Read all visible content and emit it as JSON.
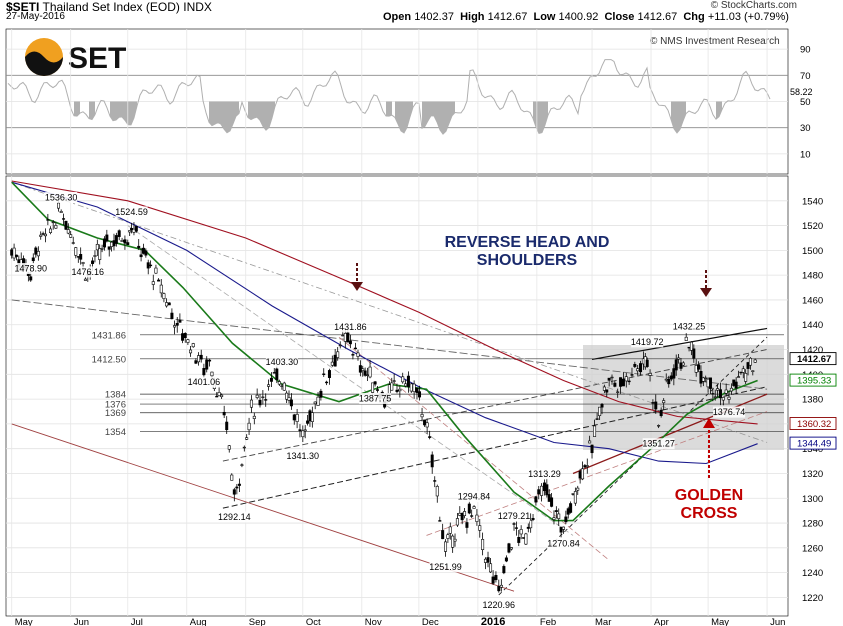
{
  "header": {
    "symbol": "$SETI",
    "name": "Thailand Set Index (EOD)",
    "exchange": "INDX",
    "date": "27-May-2016",
    "open_label": "Open",
    "open": "1402.37",
    "high_label": "High",
    "high": "1412.67",
    "low_label": "Low",
    "low": "1400.92",
    "close_label": "Close",
    "close": "1412.67",
    "chg_label": "Chg",
    "chg": "+11.03 (+0.79%)",
    "brand": "© StockCharts.com",
    "credit": "© NMS Investment Research",
    "logo_text": "SET",
    "colors": {
      "brand_orange": "#f0a020",
      "chg_green": "#008000"
    }
  },
  "chart_data": {
    "type": "line",
    "title": "",
    "x_labels": [
      "May",
      "Jun",
      "Jul",
      "Aug",
      "Sep",
      "Oct",
      "Nov",
      "Dec",
      "2016",
      "Feb",
      "Mar",
      "Apr",
      "May",
      "Jun"
    ],
    "y_ticks": [
      1220,
      1240,
      1260,
      1280,
      1300,
      1320,
      1340,
      1360,
      1380,
      1400,
      1420,
      1440,
      1460,
      1480,
      1500,
      1520,
      1540
    ],
    "ylim": [
      1205,
      1560
    ],
    "rsi_ticks": [
      10,
      30,
      50,
      70,
      90
    ],
    "rsi_latest": "58.22",
    "grid": true,
    "price_annotations": [
      {
        "label": "1478.90",
        "x": "2015-05-11",
        "value": 1478.9
      },
      {
        "label": "1536.30",
        "x": "2015-05-27",
        "value": 1536.3
      },
      {
        "label": "1476.16",
        "x": "2015-06-10",
        "value": 1476.16
      },
      {
        "label": "1524.59",
        "x": "2015-07-03",
        "value": 1524.59
      },
      {
        "label": "1401.06",
        "x": "2015-08-10",
        "value": 1401.06
      },
      {
        "label": "1292.14",
        "x": "2015-08-26",
        "value": 1292.14
      },
      {
        "label": "1403.30",
        "x": "2015-09-20",
        "value": 1403.3
      },
      {
        "label": "1341.30",
        "x": "2015-10-01",
        "value": 1341.3
      },
      {
        "label": "1431.86",
        "x": "2015-10-26",
        "value": 1431.86
      },
      {
        "label": "1387.75",
        "x": "2015-11-08",
        "value": 1387.75
      },
      {
        "label": "1251.99",
        "x": "2015-12-15",
        "value": 1251.99
      },
      {
        "label": "1294.84",
        "x": "2015-12-30",
        "value": 1294.84
      },
      {
        "label": "1220.96",
        "x": "2016-01-12",
        "value": 1220.96
      },
      {
        "label": "1279.21",
        "x": "2016-01-20",
        "value": 1279.21
      },
      {
        "label": "1313.29",
        "x": "2016-02-05",
        "value": 1313.29
      },
      {
        "label": "1270.84",
        "x": "2016-02-15",
        "value": 1270.84
      },
      {
        "label": "1419.72",
        "x": "2016-03-30",
        "value": 1419.72
      },
      {
        "label": "1351.27",
        "x": "2016-04-05",
        "value": 1351.27
      },
      {
        "label": "1432.25",
        "x": "2016-04-21",
        "value": 1432.25
      },
      {
        "label": "1376.74",
        "x": "2016-05-12",
        "value": 1376.74
      }
    ],
    "horizontal_levels": [
      {
        "label": "1431.86",
        "value": 1431.86
      },
      {
        "label": "1412.50",
        "value": 1412.5
      },
      {
        "label": "1384",
        "value": 1384
      },
      {
        "label": "1376",
        "value": 1376
      },
      {
        "label": "1369",
        "value": 1369
      },
      {
        "label": "1354",
        "value": 1354
      }
    ],
    "right_badges": [
      {
        "label": "1412.67",
        "value": 1412.67,
        "color": "#000000"
      },
      {
        "label": "1395.33",
        "value": 1395.33,
        "color": "#008000"
      },
      {
        "label": "1360.32",
        "value": 1360.32,
        "color": "#8b0000"
      },
      {
        "label": "1344.49",
        "value": 1344.49,
        "color": "#000080"
      }
    ],
    "price_series": [
      [
        "2015-05-01",
        1500
      ],
      [
        "2015-05-06",
        1492
      ],
      [
        "2015-05-11",
        1482
      ],
      [
        "2015-05-15",
        1505
      ],
      [
        "2015-05-20",
        1515
      ],
      [
        "2015-05-27",
        1532
      ],
      [
        "2015-06-01",
        1515
      ],
      [
        "2015-06-05",
        1500
      ],
      [
        "2015-06-10",
        1480
      ],
      [
        "2015-06-15",
        1495
      ],
      [
        "2015-06-20",
        1505
      ],
      [
        "2015-06-25",
        1510
      ],
      [
        "2015-07-01",
        1512
      ],
      [
        "2015-07-03",
        1522
      ],
      [
        "2015-07-08",
        1500
      ],
      [
        "2015-07-13",
        1485
      ],
      [
        "2015-07-20",
        1465
      ],
      [
        "2015-07-27",
        1440
      ],
      [
        "2015-08-03",
        1425
      ],
      [
        "2015-08-10",
        1405
      ],
      [
        "2015-08-13",
        1412
      ],
      [
        "2015-08-18",
        1380
      ],
      [
        "2015-08-22",
        1360
      ],
      [
        "2015-08-26",
        1300
      ],
      [
        "2015-08-30",
        1330
      ],
      [
        "2015-09-04",
        1370
      ],
      [
        "2015-09-10",
        1385
      ],
      [
        "2015-09-16",
        1395
      ],
      [
        "2015-09-20",
        1398
      ],
      [
        "2015-09-25",
        1378
      ],
      [
        "2015-10-01",
        1348
      ],
      [
        "2015-10-06",
        1370
      ],
      [
        "2015-10-12",
        1395
      ],
      [
        "2015-10-18",
        1415
      ],
      [
        "2015-10-22",
        1425
      ],
      [
        "2015-10-26",
        1428
      ],
      [
        "2015-10-30",
        1410
      ],
      [
        "2015-11-04",
        1400
      ],
      [
        "2015-11-08",
        1392
      ],
      [
        "2015-11-13",
        1380
      ],
      [
        "2015-11-18",
        1388
      ],
      [
        "2015-11-24",
        1395
      ],
      [
        "2015-11-30",
        1385
      ],
      [
        "2015-12-04",
        1365
      ],
      [
        "2015-12-08",
        1330
      ],
      [
        "2015-12-12",
        1290
      ],
      [
        "2015-12-15",
        1258
      ],
      [
        "2015-12-20",
        1275
      ],
      [
        "2015-12-25",
        1285
      ],
      [
        "2015-12-30",
        1290
      ],
      [
        "2016-01-05",
        1255
      ],
      [
        "2016-01-09",
        1235
      ],
      [
        "2016-01-12",
        1225
      ],
      [
        "2016-01-16",
        1250
      ],
      [
        "2016-01-20",
        1275
      ],
      [
        "2016-01-25",
        1265
      ],
      [
        "2016-01-30",
        1290
      ],
      [
        "2016-02-05",
        1308
      ],
      [
        "2016-02-10",
        1290
      ],
      [
        "2016-02-15",
        1275
      ],
      [
        "2016-02-20",
        1300
      ],
      [
        "2016-02-25",
        1325
      ],
      [
        "2016-03-01",
        1340
      ],
      [
        "2016-03-05",
        1375
      ],
      [
        "2016-03-10",
        1395
      ],
      [
        "2016-03-16",
        1390
      ],
      [
        "2016-03-22",
        1405
      ],
      [
        "2016-03-28",
        1410
      ],
      [
        "2016-03-30",
        1412
      ],
      [
        "2016-04-02",
        1385
      ],
      [
        "2016-04-05",
        1360
      ],
      [
        "2016-04-09",
        1390
      ],
      [
        "2016-04-13",
        1405
      ],
      [
        "2016-04-18",
        1415
      ],
      [
        "2016-04-21",
        1425
      ],
      [
        "2016-04-26",
        1405
      ],
      [
        "2016-05-01",
        1398
      ],
      [
        "2016-05-06",
        1385
      ],
      [
        "2016-05-12",
        1382
      ],
      [
        "2016-05-17",
        1398
      ],
      [
        "2016-05-22",
        1402
      ],
      [
        "2016-05-27",
        1412.67
      ]
    ]
  },
  "annotations": {
    "pattern_title_line1": "REVERSE HEAD AND",
    "pattern_title_line2": "SHOULDERS",
    "golden_cross_line1": "GOLDEN",
    "golden_cross_line2": "CROSS"
  }
}
